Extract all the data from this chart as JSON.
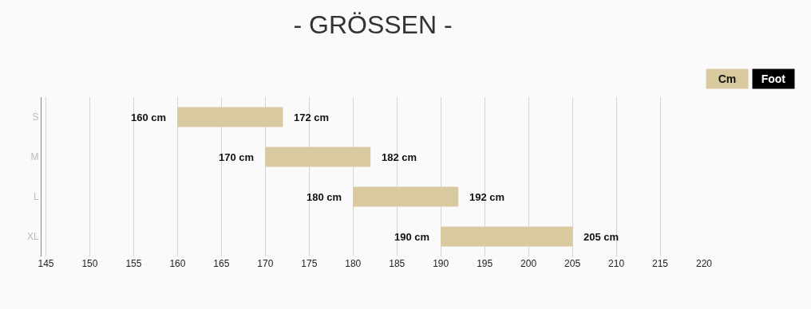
{
  "chart_data": {
    "type": "bar",
    "title": "- GRÖSSEN -",
    "orientation": "horizontal",
    "categories": [
      "S",
      "M",
      "L",
      "XL"
    ],
    "base": [
      160,
      170,
      180,
      190
    ],
    "values": [
      12,
      12,
      12,
      15
    ],
    "color": "#d8c99e",
    "xlim": [
      144.5,
      220
    ],
    "xticks": [
      145,
      150,
      155,
      160,
      165,
      170,
      175,
      180,
      185,
      190,
      195,
      200,
      205,
      210,
      215,
      220
    ],
    "grid": "x",
    "annotations": [
      {
        "text": "160 cm",
        "x": 160,
        "y": "S"
      },
      {
        "text": "172 cm",
        "x": 172,
        "y": "S"
      },
      {
        "text": "170 cm",
        "x": 170,
        "y": "M"
      },
      {
        "text": "182 cm",
        "x": 182,
        "y": "M"
      },
      {
        "text": "180 cm",
        "x": 180,
        "y": "L"
      },
      {
        "text": "192 cm",
        "x": 192,
        "y": "L"
      },
      {
        "text": "190 cm",
        "x": 190,
        "y": "XL"
      },
      {
        "text": "205 cm",
        "x": 205,
        "y": "XL"
      },
      "Cm",
      "Foot"
    ]
  }
}
